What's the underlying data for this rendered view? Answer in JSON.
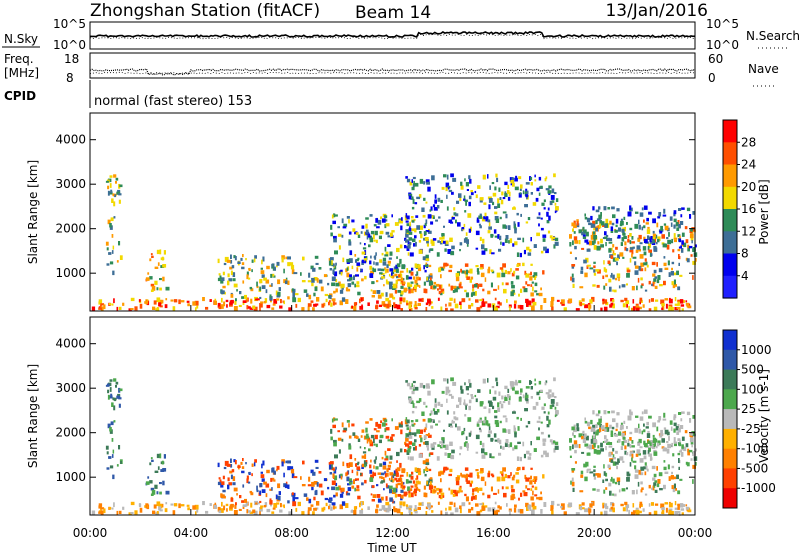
{
  "header": {
    "station": "Zhongshan Station (fitACF)",
    "beam": "Beam 14",
    "date": "13/Jan/2016"
  },
  "noise_panel": {
    "left_label": "N.Sky",
    "left_ticks": [
      "10^5",
      "10^0"
    ],
    "right_label": "N.Search",
    "right_ticks": [
      "10^5",
      "10^0"
    ]
  },
  "freq_panel": {
    "left_label_1": "Freq.",
    "left_label_2": "[MHz]",
    "left_ticks": [
      "18",
      "8"
    ],
    "right_label": "Nave",
    "right_ticks": [
      "60",
      "0"
    ]
  },
  "cpid": {
    "label": "CPID",
    "value": "normal (fast stereo) 153"
  },
  "colorbar_power": {
    "title": "Power [dB]",
    "labels": [
      "28",
      "24",
      "20",
      "16",
      "12",
      "8",
      "4"
    ],
    "colors": [
      "#ff0000",
      "#ff4f00",
      "#ff9a00",
      "#f2d900",
      "#2e8b57",
      "#3d6e96",
      "#0000ee",
      "#2020ff"
    ]
  },
  "colorbar_velocity": {
    "title": "Velocity [m s-1]",
    "labels": [
      "1000",
      "500",
      "100",
      "25",
      "-25",
      "-100",
      "-500",
      "-1000"
    ],
    "colors": [
      "#1030d0",
      "#2f58a8",
      "#3c7a58",
      "#4da84d",
      "#b9b9b9",
      "#ffb000",
      "#ff8000",
      "#ff4000",
      "#ee0000"
    ]
  },
  "chart_data": [
    {
      "type": "heatmap",
      "title": "",
      "xlabel": "Time UT",
      "ylabel": "Slant Range [km]",
      "x_ticks": [
        "00:00",
        "04:00",
        "08:00",
        "12:00",
        "16:00",
        "20:00",
        "00:00"
      ],
      "y_ticks": [
        "4000",
        "3000",
        "2000",
        "1000"
      ],
      "ylim": [
        150,
        4600
      ],
      "colorbar": "Power [dB]"
    },
    {
      "type": "heatmap",
      "title": "",
      "xlabel": "Time UT",
      "ylabel": "Slant Range [km]",
      "x_ticks": [
        "00:00",
        "04:00",
        "08:00",
        "12:00",
        "16:00",
        "20:00",
        "00:00"
      ],
      "y_ticks": [
        "4000",
        "3000",
        "2000",
        "1000"
      ],
      "ylim": [
        150,
        4600
      ],
      "colorbar": "Velocity [m s-1]"
    }
  ],
  "x_axis": {
    "label": "Time UT",
    "ticks": [
      "00:00",
      "04:00",
      "08:00",
      "12:00",
      "16:00",
      "20:00",
      "00:00"
    ]
  }
}
